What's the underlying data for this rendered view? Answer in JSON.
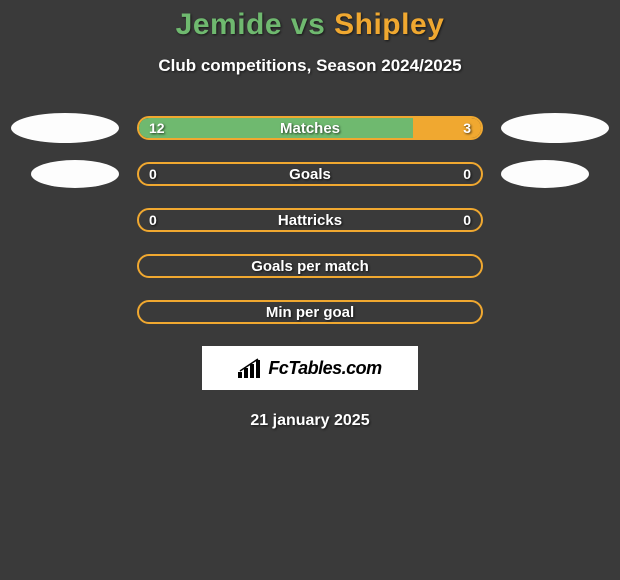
{
  "title": {
    "player1": "Jemide",
    "vs": "vs",
    "player2": "Shipley"
  },
  "subtitle": "Club competitions, Season 2024/2025",
  "colors": {
    "player1": "#6fb96f",
    "player2": "#f0a830",
    "oval": "#fdfdfd",
    "bar_border": "#f0a830",
    "background": "#3a3a3a",
    "text": "#ffffff"
  },
  "stats": [
    {
      "label": "Matches",
      "left_value": "12",
      "right_value": "3",
      "left_pct": 80,
      "right_pct": 20,
      "show_ovals": true,
      "oval_size": "normal"
    },
    {
      "label": "Goals",
      "left_value": "0",
      "right_value": "0",
      "left_pct": 0,
      "right_pct": 0,
      "show_ovals": true,
      "oval_size": "small"
    },
    {
      "label": "Hattricks",
      "left_value": "0",
      "right_value": "0",
      "left_pct": 0,
      "right_pct": 0,
      "show_ovals": false
    },
    {
      "label": "Goals per match",
      "left_value": "",
      "right_value": "",
      "left_pct": 0,
      "right_pct": 0,
      "show_ovals": false
    },
    {
      "label": "Min per goal",
      "left_value": "",
      "right_value": "",
      "left_pct": 0,
      "right_pct": 0,
      "show_ovals": false
    }
  ],
  "logo": {
    "text": "FcTables.com"
  },
  "date": "21 january 2025",
  "typography": {
    "title_fontsize": 30,
    "subtitle_fontsize": 17,
    "label_fontsize": 15,
    "value_fontsize": 14,
    "date_fontsize": 16
  }
}
